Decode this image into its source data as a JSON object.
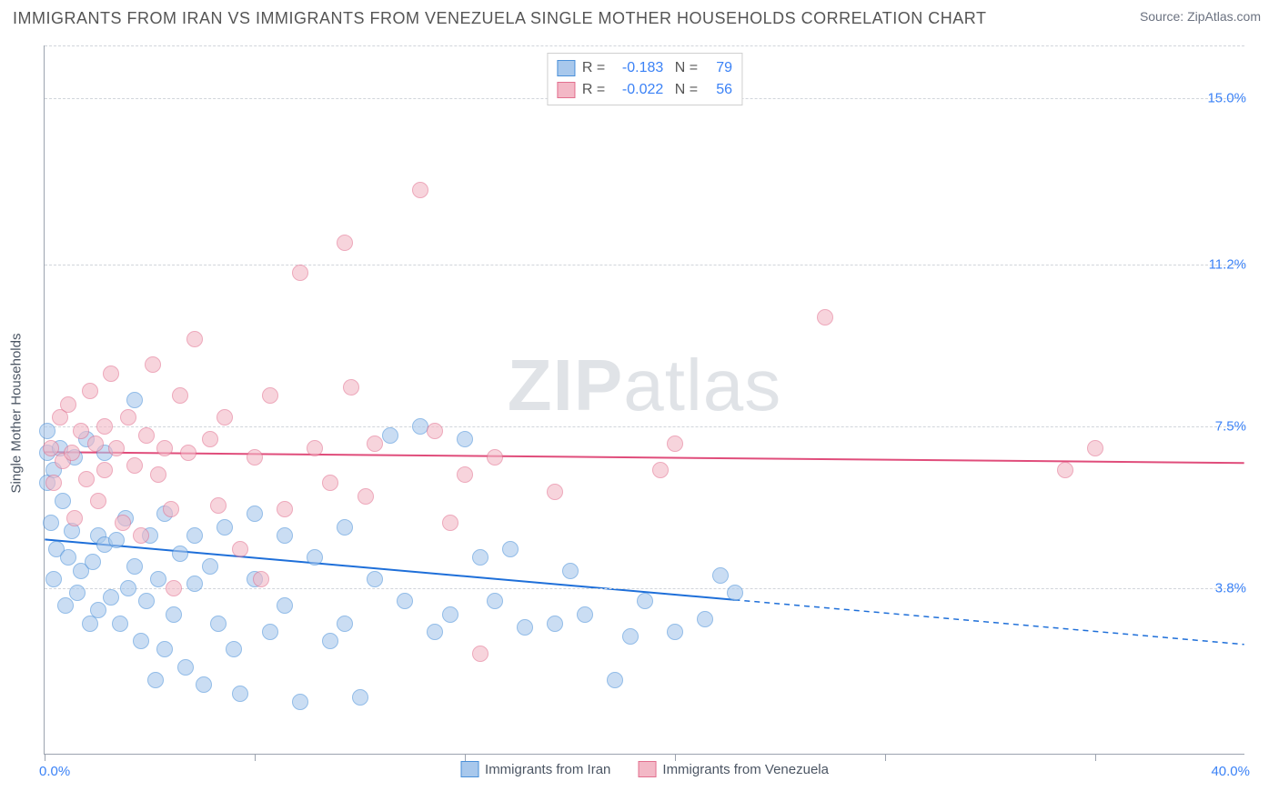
{
  "title": "IMMIGRANTS FROM IRAN VS IMMIGRANTS FROM VENEZUELA SINGLE MOTHER HOUSEHOLDS CORRELATION CHART",
  "source": "Source: ZipAtlas.com",
  "watermark_bold": "ZIP",
  "watermark_light": "atlas",
  "y_axis_title": "Single Mother Households",
  "chart": {
    "type": "scatter",
    "xlim": [
      0,
      40
    ],
    "ylim": [
      0,
      16.2
    ],
    "x_ticks": [
      0,
      7,
      14,
      21,
      28,
      35
    ],
    "y_grid": [
      3.8,
      7.5,
      11.2,
      15.0
    ],
    "y_tick_labels": [
      "3.8%",
      "7.5%",
      "11.2%",
      "15.0%"
    ],
    "x_extent_left": "0.0%",
    "x_extent_right": "40.0%",
    "background": "#ffffff",
    "grid_color": "#d1d5db",
    "axis_color": "#9ca3af",
    "marker_radius": 9,
    "series": [
      {
        "name": "Immigrants from Iran",
        "fill": "#a8c8ec",
        "stroke": "#4a90d9",
        "r_value": "-0.183",
        "n_value": "79",
        "trend": {
          "y_at_x0": 4.9,
          "y_at_x40": 2.5,
          "solid_until_x": 23,
          "color": "#1e6fd9",
          "width": 2
        },
        "points": [
          [
            0.1,
            6.2
          ],
          [
            0.1,
            6.9
          ],
          [
            0.1,
            7.4
          ],
          [
            0.2,
            5.3
          ],
          [
            0.3,
            4.0
          ],
          [
            0.3,
            6.5
          ],
          [
            0.4,
            4.7
          ],
          [
            0.5,
            7.0
          ],
          [
            0.6,
            5.8
          ],
          [
            0.7,
            3.4
          ],
          [
            0.8,
            4.5
          ],
          [
            0.9,
            5.1
          ],
          [
            1.0,
            6.8
          ],
          [
            1.1,
            3.7
          ],
          [
            1.2,
            4.2
          ],
          [
            1.4,
            7.2
          ],
          [
            1.5,
            3.0
          ],
          [
            1.6,
            4.4
          ],
          [
            1.8,
            5.0
          ],
          [
            1.8,
            3.3
          ],
          [
            2.0,
            4.8
          ],
          [
            2.0,
            6.9
          ],
          [
            2.2,
            3.6
          ],
          [
            2.4,
            4.9
          ],
          [
            2.5,
            3.0
          ],
          [
            2.7,
            5.4
          ],
          [
            2.8,
            3.8
          ],
          [
            3.0,
            4.3
          ],
          [
            3.0,
            8.1
          ],
          [
            3.2,
            2.6
          ],
          [
            3.4,
            3.5
          ],
          [
            3.5,
            5.0
          ],
          [
            3.7,
            1.7
          ],
          [
            3.8,
            4.0
          ],
          [
            4.0,
            5.5
          ],
          [
            4.0,
            2.4
          ],
          [
            4.3,
            3.2
          ],
          [
            4.5,
            4.6
          ],
          [
            4.7,
            2.0
          ],
          [
            5.0,
            3.9
          ],
          [
            5.0,
            5.0
          ],
          [
            5.3,
            1.6
          ],
          [
            5.5,
            4.3
          ],
          [
            5.8,
            3.0
          ],
          [
            6.0,
            5.2
          ],
          [
            6.3,
            2.4
          ],
          [
            6.5,
            1.4
          ],
          [
            7.0,
            4.0
          ],
          [
            7.0,
            5.5
          ],
          [
            7.5,
            2.8
          ],
          [
            8.0,
            3.4
          ],
          [
            8.0,
            5.0
          ],
          [
            8.5,
            1.2
          ],
          [
            9.0,
            4.5
          ],
          [
            9.5,
            2.6
          ],
          [
            10.0,
            3.0
          ],
          [
            10.0,
            5.2
          ],
          [
            10.5,
            1.3
          ],
          [
            11.0,
            4.0
          ],
          [
            11.5,
            7.3
          ],
          [
            12.0,
            3.5
          ],
          [
            12.5,
            7.5
          ],
          [
            13.0,
            2.8
          ],
          [
            13.5,
            3.2
          ],
          [
            14.0,
            7.2
          ],
          [
            14.5,
            4.5
          ],
          [
            15.0,
            3.5
          ],
          [
            15.5,
            4.7
          ],
          [
            16.0,
            2.9
          ],
          [
            17.0,
            3.0
          ],
          [
            17.5,
            4.2
          ],
          [
            18.0,
            3.2
          ],
          [
            19.0,
            1.7
          ],
          [
            19.5,
            2.7
          ],
          [
            20.0,
            3.5
          ],
          [
            21.0,
            2.8
          ],
          [
            22.0,
            3.1
          ],
          [
            22.5,
            4.1
          ],
          [
            23.0,
            3.7
          ]
        ]
      },
      {
        "name": "Immigrants from Venezuela",
        "fill": "#f3b8c6",
        "stroke": "#e2708f",
        "r_value": "-0.022",
        "n_value": "56",
        "trend": {
          "y_at_x0": 6.9,
          "y_at_x40": 6.65,
          "solid_until_x": 40,
          "color": "#e04d7b",
          "width": 2
        },
        "points": [
          [
            0.2,
            7.0
          ],
          [
            0.3,
            6.2
          ],
          [
            0.5,
            7.7
          ],
          [
            0.6,
            6.7
          ],
          [
            0.8,
            8.0
          ],
          [
            0.9,
            6.9
          ],
          [
            1.0,
            5.4
          ],
          [
            1.2,
            7.4
          ],
          [
            1.4,
            6.3
          ],
          [
            1.5,
            8.3
          ],
          [
            1.7,
            7.1
          ],
          [
            1.8,
            5.8
          ],
          [
            2.0,
            7.5
          ],
          [
            2.0,
            6.5
          ],
          [
            2.2,
            8.7
          ],
          [
            2.4,
            7.0
          ],
          [
            2.6,
            5.3
          ],
          [
            2.8,
            7.7
          ],
          [
            3.0,
            6.6
          ],
          [
            3.2,
            5.0
          ],
          [
            3.4,
            7.3
          ],
          [
            3.6,
            8.9
          ],
          [
            3.8,
            6.4
          ],
          [
            4.0,
            7.0
          ],
          [
            4.2,
            5.6
          ],
          [
            4.5,
            8.2
          ],
          [
            4.8,
            6.9
          ],
          [
            5.0,
            9.5
          ],
          [
            5.5,
            7.2
          ],
          [
            5.8,
            5.7
          ],
          [
            6.0,
            7.7
          ],
          [
            6.5,
            4.7
          ],
          [
            7.0,
            6.8
          ],
          [
            7.5,
            8.2
          ],
          [
            8.0,
            5.6
          ],
          [
            8.5,
            11.0
          ],
          [
            9.0,
            7.0
          ],
          [
            9.5,
            6.2
          ],
          [
            10.0,
            11.7
          ],
          [
            10.2,
            8.4
          ],
          [
            10.7,
            5.9
          ],
          [
            11.0,
            7.1
          ],
          [
            12.5,
            12.9
          ],
          [
            13.0,
            7.4
          ],
          [
            13.5,
            5.3
          ],
          [
            14.0,
            6.4
          ],
          [
            14.5,
            2.3
          ],
          [
            15.0,
            6.8
          ],
          [
            17.0,
            6.0
          ],
          [
            20.5,
            6.5
          ],
          [
            21.0,
            7.1
          ],
          [
            26.0,
            10.0
          ],
          [
            34.0,
            6.5
          ],
          [
            35.0,
            7.0
          ],
          [
            4.3,
            3.8
          ],
          [
            7.2,
            4.0
          ]
        ]
      }
    ]
  },
  "legend_bottom": [
    {
      "label": "Immigrants from Iran",
      "fill": "#a8c8ec",
      "stroke": "#4a90d9"
    },
    {
      "label": "Immigrants from Venezuela",
      "fill": "#f3b8c6",
      "stroke": "#e2708f"
    }
  ]
}
